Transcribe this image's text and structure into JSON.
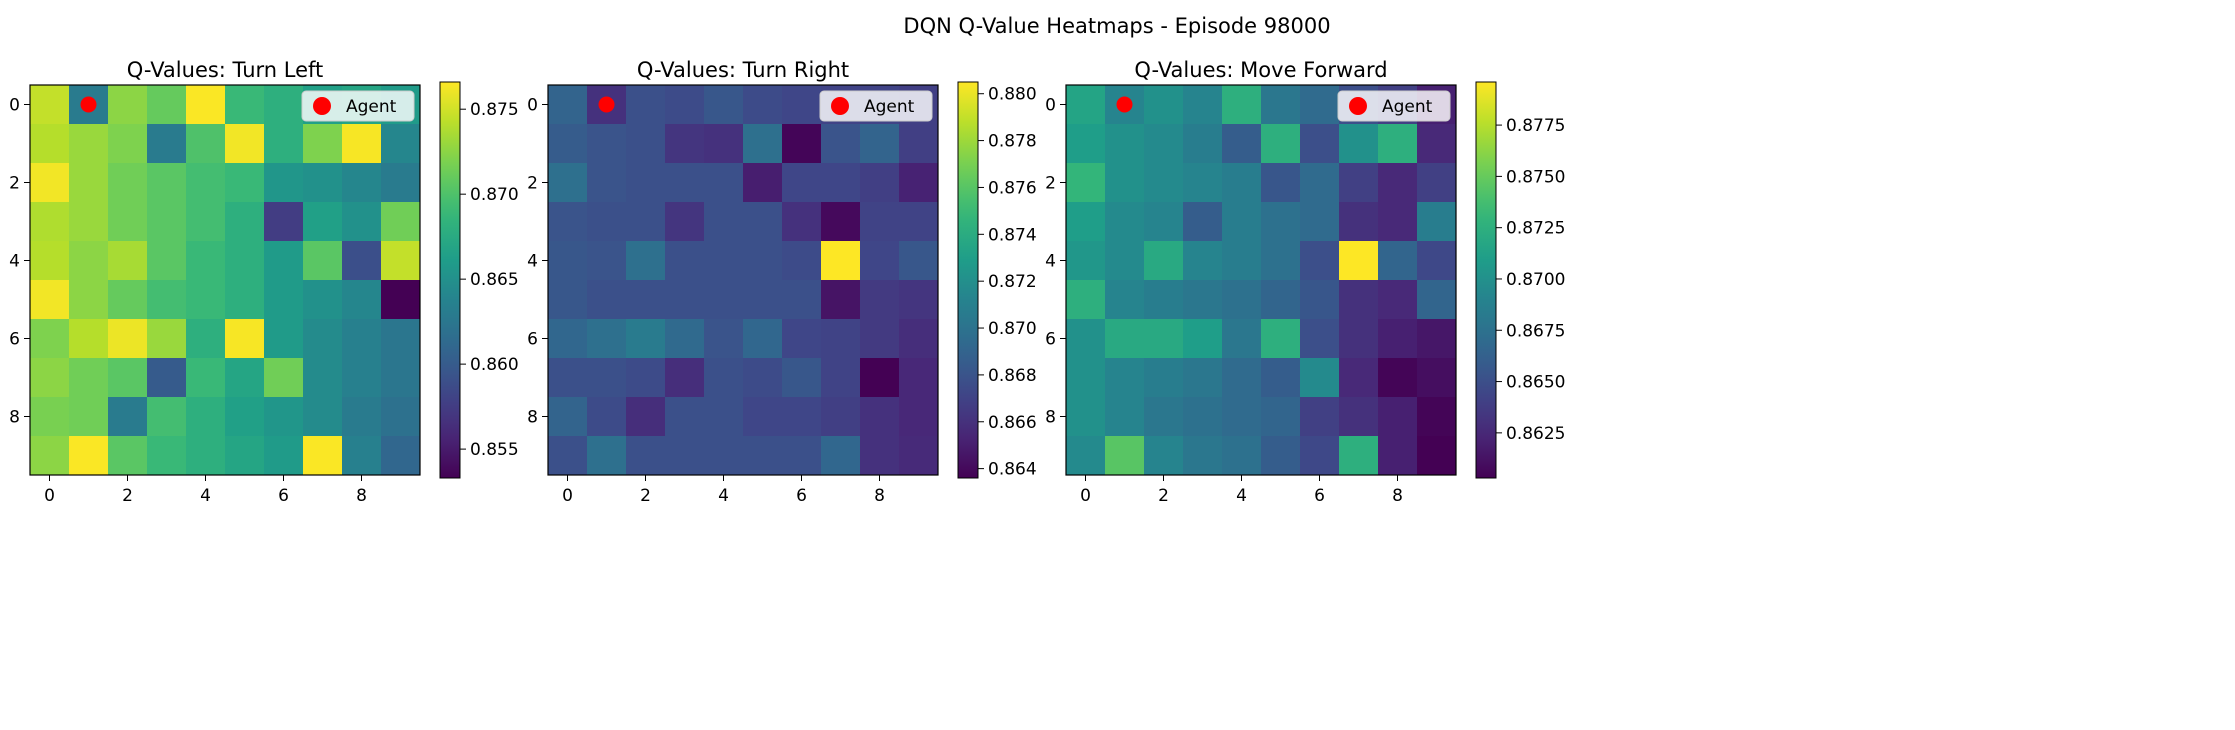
{
  "figure": {
    "title": "DQN Q-Value Heatmaps - Episode 98000"
  },
  "chart_data": [
    {
      "type": "heatmap",
      "title": "Q-Values: Turn Left",
      "x_ticks": [
        "0",
        "2",
        "4",
        "6",
        "8"
      ],
      "y_ticks": [
        "0",
        "2",
        "4",
        "6",
        "8"
      ],
      "colorbar": {
        "min": 0.8533,
        "max": 0.8766,
        "ticks": [
          0.855,
          0.86,
          0.865,
          0.87,
          0.875
        ],
        "tick_labels": [
          "0.855",
          "0.860",
          "0.865",
          "0.870",
          "0.875"
        ]
      },
      "legend": {
        "label": "Agent",
        "position": "top-right"
      },
      "agent": {
        "col": 1,
        "row": 0,
        "color": "#ff0000"
      },
      "values": [
        [
          0.8745,
          0.863,
          0.8725,
          0.871,
          0.8765,
          0.869,
          0.868,
          0.8665,
          0.867,
          0.866
        ],
        [
          0.874,
          0.873,
          0.872,
          0.863,
          0.87,
          0.8762,
          0.868,
          0.872,
          0.8764,
          0.864
        ],
        [
          0.8762,
          0.873,
          0.8715,
          0.8705,
          0.8695,
          0.869,
          0.8655,
          0.865,
          0.864,
          0.863
        ],
        [
          0.8738,
          0.873,
          0.8715,
          0.8705,
          0.8695,
          0.868,
          0.8575,
          0.8665,
          0.865,
          0.8715
        ],
        [
          0.874,
          0.8725,
          0.8735,
          0.8705,
          0.869,
          0.868,
          0.866,
          0.8705,
          0.859,
          0.8745
        ],
        [
          0.8762,
          0.8725,
          0.871,
          0.8695,
          0.869,
          0.868,
          0.866,
          0.865,
          0.864,
          0.8533
        ],
        [
          0.872,
          0.874,
          0.876,
          0.873,
          0.868,
          0.8764,
          0.866,
          0.8645,
          0.8635,
          0.8625
        ],
        [
          0.8725,
          0.8715,
          0.8705,
          0.86,
          0.869,
          0.867,
          0.8715,
          0.8645,
          0.8635,
          0.8625
        ],
        [
          0.8718,
          0.8715,
          0.863,
          0.8695,
          0.868,
          0.8665,
          0.8655,
          0.8645,
          0.863,
          0.862
        ],
        [
          0.8725,
          0.8765,
          0.8705,
          0.869,
          0.868,
          0.867,
          0.866,
          0.8765,
          0.8635,
          0.861
        ]
      ]
    },
    {
      "type": "heatmap",
      "title": "Q-Values: Turn Right",
      "x_ticks": [
        "0",
        "2",
        "4",
        "6",
        "8"
      ],
      "y_ticks": [
        "0",
        "2",
        "4",
        "6",
        "8"
      ],
      "colorbar": {
        "min": 0.8636,
        "max": 0.8805,
        "ticks": [
          0.864,
          0.866,
          0.868,
          0.87,
          0.872,
          0.874,
          0.876,
          0.878,
          0.88
        ],
        "tick_labels": [
          "0.864",
          "0.866",
          "0.868",
          "0.870",
          "0.872",
          "0.874",
          "0.876",
          "0.878",
          "0.880"
        ]
      },
      "legend": {
        "label": "Agent",
        "position": "top-right"
      },
      "agent": {
        "col": 1,
        "row": 0,
        "color": "#ff0000"
      },
      "values": [
        [
          0.869,
          0.866,
          0.8678,
          0.8675,
          0.8682,
          0.8675,
          0.8672,
          0.867,
          0.867,
          0.8668
        ],
        [
          0.8685,
          0.868,
          0.8678,
          0.8662,
          0.866,
          0.8698,
          0.8638,
          0.868,
          0.869,
          0.8668
        ],
        [
          0.8698,
          0.868,
          0.8678,
          0.8678,
          0.8678,
          0.865,
          0.8672,
          0.8672,
          0.8668,
          0.8652
        ],
        [
          0.868,
          0.8678,
          0.8678,
          0.8662,
          0.8678,
          0.8678,
          0.866,
          0.864,
          0.867,
          0.867
        ],
        [
          0.8682,
          0.868,
          0.8698,
          0.8678,
          0.8678,
          0.8678,
          0.8675,
          0.8805,
          0.8672,
          0.8682
        ],
        [
          0.8682,
          0.8678,
          0.8678,
          0.8678,
          0.8678,
          0.8678,
          0.8678,
          0.8645,
          0.8665,
          0.8662
        ],
        [
          0.8692,
          0.8698,
          0.8706,
          0.8694,
          0.868,
          0.8692,
          0.8672,
          0.867,
          0.8665,
          0.8658
        ],
        [
          0.8678,
          0.8678,
          0.8675,
          0.8658,
          0.8678,
          0.8675,
          0.8682,
          0.867,
          0.8636,
          0.8655
        ],
        [
          0.869,
          0.8675,
          0.8658,
          0.8678,
          0.8678,
          0.8672,
          0.8672,
          0.8668,
          0.866,
          0.8655
        ],
        [
          0.8678,
          0.8698,
          0.8678,
          0.8678,
          0.8678,
          0.8678,
          0.8678,
          0.8692,
          0.866,
          0.8656
        ]
      ]
    },
    {
      "type": "heatmap",
      "title": "Q-Values: Move Forward",
      "x_ticks": [
        "0",
        "2",
        "4",
        "6",
        "8"
      ],
      "y_ticks": [
        "0",
        "2",
        "4",
        "6",
        "8"
      ],
      "colorbar": {
        "min": 0.8603,
        "max": 0.8796,
        "ticks": [
          0.8625,
          0.865,
          0.8675,
          0.87,
          0.8725,
          0.875,
          0.8775
        ],
        "tick_labels": [
          "0.8625",
          "0.8650",
          "0.8675",
          "0.8700",
          "0.8725",
          "0.8750",
          "0.8775"
        ]
      },
      "legend": {
        "label": "Agent",
        "position": "top-right"
      },
      "agent": {
        "col": 1,
        "row": 0,
        "color": "#ff0000"
      },
      "values": [
        [
          0.8715,
          0.869,
          0.87,
          0.869,
          0.8725,
          0.868,
          0.867,
          0.865,
          0.864,
          0.862
        ],
        [
          0.871,
          0.87,
          0.8695,
          0.8685,
          0.866,
          0.8725,
          0.865,
          0.87,
          0.8725,
          0.8625
        ],
        [
          0.873,
          0.87,
          0.8695,
          0.869,
          0.8685,
          0.8655,
          0.867,
          0.864,
          0.8625,
          0.864
        ],
        [
          0.871,
          0.8695,
          0.869,
          0.866,
          0.8685,
          0.8675,
          0.867,
          0.863,
          0.8625,
          0.8685
        ],
        [
          0.8705,
          0.8695,
          0.872,
          0.869,
          0.8685,
          0.8675,
          0.865,
          0.8796,
          0.8665,
          0.8645
        ],
        [
          0.8725,
          0.869,
          0.8685,
          0.868,
          0.8675,
          0.8665,
          0.8655,
          0.863,
          0.8625,
          0.8665
        ],
        [
          0.87,
          0.872,
          0.872,
          0.871,
          0.868,
          0.8725,
          0.865,
          0.863,
          0.862,
          0.8615
        ],
        [
          0.87,
          0.869,
          0.8685,
          0.868,
          0.867,
          0.866,
          0.8695,
          0.8625,
          0.8605,
          0.861
        ],
        [
          0.87,
          0.869,
          0.868,
          0.8675,
          0.867,
          0.8665,
          0.864,
          0.863,
          0.862,
          0.8605
        ],
        [
          0.8695,
          0.8745,
          0.869,
          0.868,
          0.8675,
          0.866,
          0.8645,
          0.8725,
          0.862,
          0.8603
        ]
      ]
    }
  ]
}
